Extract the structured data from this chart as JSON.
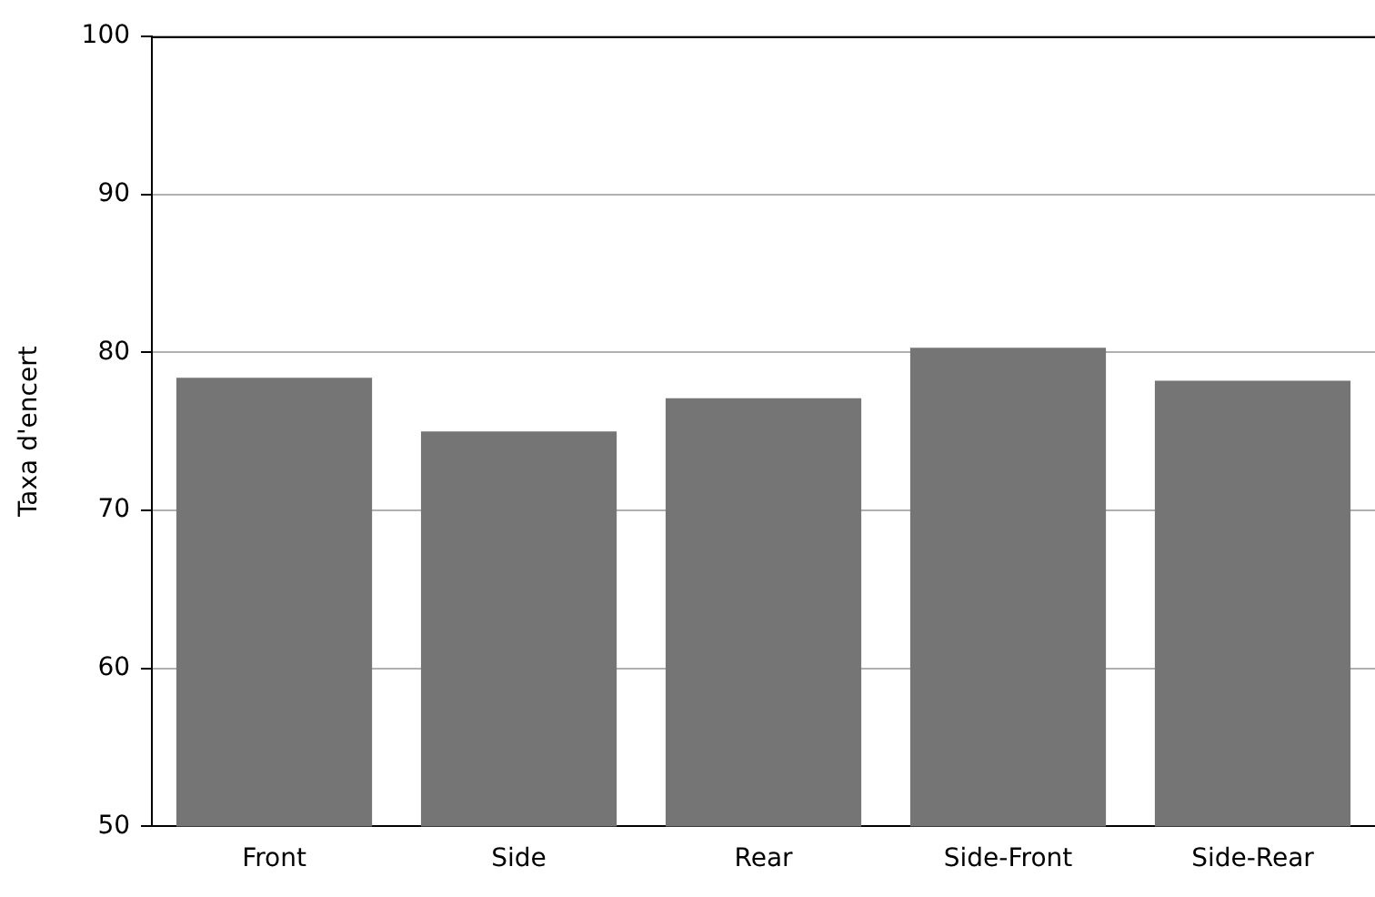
{
  "chart_data": {
    "type": "bar",
    "ylabel": "Taxa d'encert",
    "categories": [
      "Front",
      "Side",
      "Rear",
      "Side-Front",
      "Side-Rear"
    ],
    "values": [
      78.4,
      75.0,
      77.1,
      80.3,
      78.2
    ],
    "color": "#757575",
    "ylim": [
      50,
      100
    ],
    "yticks": [
      50,
      60,
      70,
      80,
      90,
      100
    ],
    "grid": "y"
  }
}
